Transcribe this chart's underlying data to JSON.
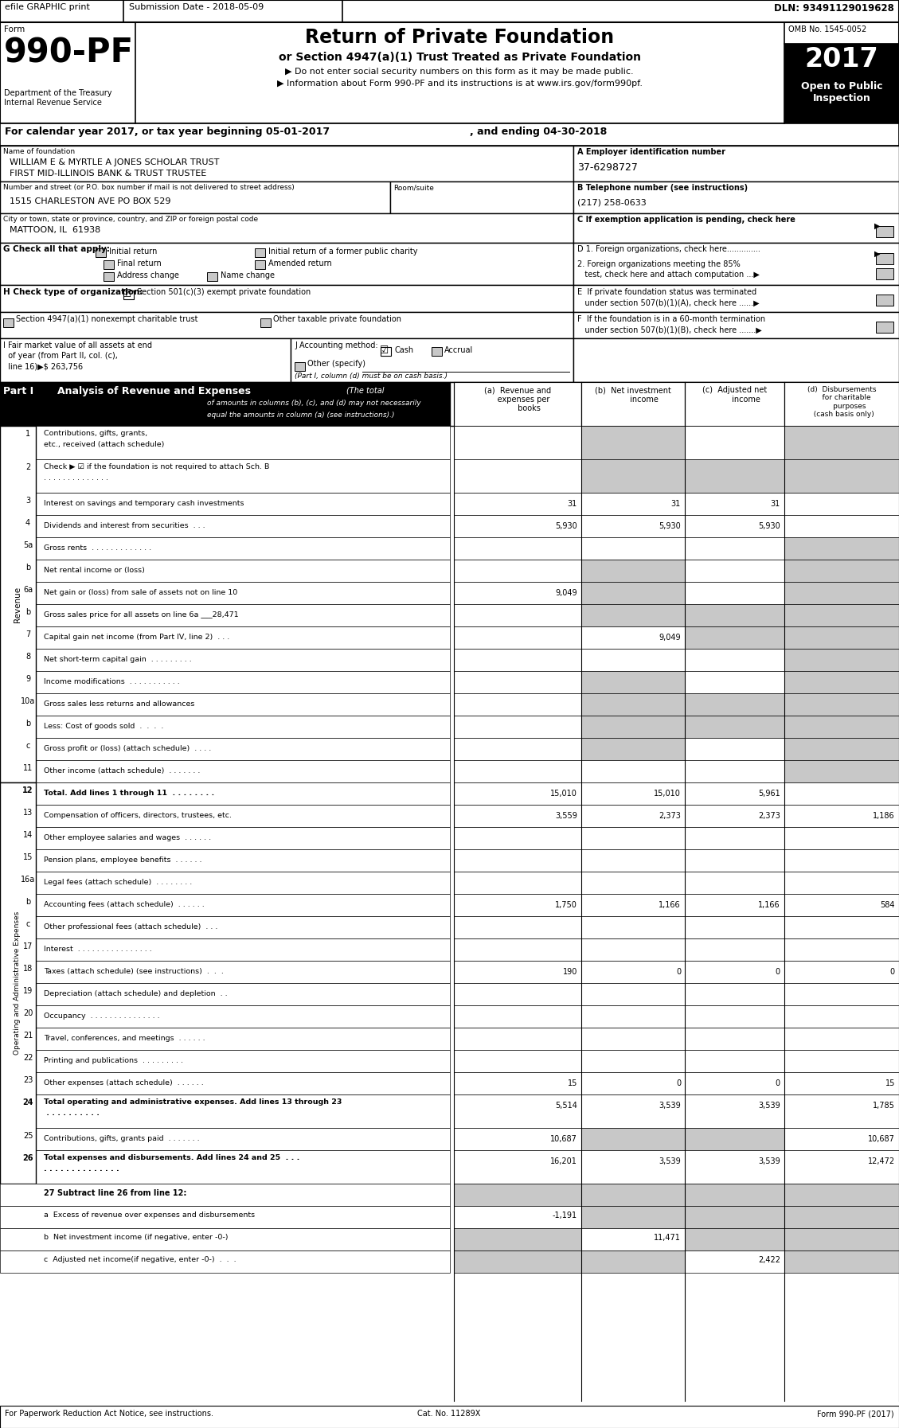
{
  "efile_text": "efile GRAPHIC print",
  "submission_date": "Submission Date - 2018-05-09",
  "dln": "DLN: 93491129019628",
  "title_main": "Return of Private Foundation",
  "title_sub1": "or Section 4947(a)(1) Trust Treated as Private Foundation",
  "title_sub2": "▶ Do not enter social security numbers on this form as it may be made public.",
  "title_sub3": "▶ Information about Form 990-PF and its instructions is at www.irs.gov/form990pf.",
  "dept_line1": "Department of the Treasury",
  "dept_line2": "Internal Revenue Service",
  "omb": "OMB No. 1545-0052",
  "year": "2017",
  "cal_year_line": "For calendar year 2017, or tax year beginning 05-01-2017",
  "cal_year_end": ", and ending 04-30-2018",
  "name_label": "Name of foundation",
  "foundation_name1": "WILLIAM E & MYRTLE A JONES SCHOLAR TRUST",
  "foundation_name2": "FIRST MID-ILLINOIS BANK & TRUST TRUSTEE",
  "ein_label": "A Employer identification number",
  "ein": "37-6298727",
  "address_label": "Number and street (or P.O. box number if mail is not delivered to street address)",
  "room_label": "Room/suite",
  "address": "1515 CHARLESTON AVE PO BOX 529",
  "phone_label": "B Telephone number (see instructions)",
  "phone": "(217) 258-0633",
  "city_label": "City or town, state or province, country, and ZIP or foreign postal code",
  "city": "MATTOON, IL  61938",
  "exempt_label": "C If exemption application is pending, check here",
  "G_label": "G Check all that apply:",
  "initial_return": "Initial return",
  "former_charity": "Initial return of a former public charity",
  "final_return": "Final return",
  "amended_return": "Amended return",
  "address_change": "Address change",
  "name_change": "Name change",
  "D1_label": "D 1. Foreign organizations, check here..............",
  "D2_line1": "2. Foreign organizations meeting the 85%",
  "D2_line2": "   test, check here and attach computation ...▶",
  "H_label": "H Check type of organization:",
  "H_501": "Section 501(c)(3) exempt private foundation",
  "H_4947": "Section 4947(a)(1) nonexempt charitable trust",
  "H_other": "Other taxable private foundation",
  "E_line1": "E  If private foundation status was terminated",
  "E_line2": "   under section 507(b)(1)(A), check here ......▶",
  "F_line1": "F  If the foundation is in a 60-month termination",
  "F_line2": "   under section 507(b)(1)(B), check here .......▶",
  "I_line1": "I Fair market value of all assets at end",
  "I_line2": "  of year (from Part II, col. (c),",
  "I_line3": "  line 16)▶$ 263,756",
  "J_label": "J Accounting method:",
  "J_cash": "Cash",
  "J_accrual": "Accrual",
  "J_other": "Other (specify)",
  "J_note": "(Part I, column (d) must be on cash basis.)",
  "rows": [
    {
      "num": "1",
      "label": "Contributions, gifts, grants, etc., received (attach schedule)",
      "multiline": true,
      "a": "",
      "b": "",
      "c": "",
      "d": "",
      "shade_b": true,
      "shade_c": false,
      "shade_d": true,
      "bold": false
    },
    {
      "num": "2",
      "label": "Check ▶ ☑ if the foundation is not required to attach Sch. B  . . . . . . . . . . . . . .",
      "multiline": true,
      "a": "",
      "b": "",
      "c": "",
      "d": "",
      "shade_b": true,
      "shade_c": true,
      "shade_d": true,
      "bold": false
    },
    {
      "num": "3",
      "label": "Interest on savings and temporary cash investments",
      "multiline": false,
      "a": "31",
      "b": "31",
      "c": "31",
      "d": "",
      "shade_b": false,
      "shade_c": false,
      "shade_d": false,
      "bold": false
    },
    {
      "num": "4",
      "label": "Dividends and interest from securities  . . .",
      "multiline": false,
      "a": "5,930",
      "b": "5,930",
      "c": "5,930",
      "d": "",
      "shade_b": false,
      "shade_c": false,
      "shade_d": false,
      "bold": false
    },
    {
      "num": "5a",
      "label": "Gross rents  . . . . . . . . . . . . .",
      "multiline": false,
      "a": "",
      "b": "",
      "c": "",
      "d": "",
      "shade_b": false,
      "shade_c": false,
      "shade_d": true,
      "bold": false
    },
    {
      "num": "b",
      "label": "Net rental income or (loss)",
      "multiline": false,
      "a": "",
      "b": "",
      "c": "",
      "d": "",
      "shade_b": true,
      "shade_c": false,
      "shade_d": true,
      "bold": false
    },
    {
      "num": "6a",
      "label": "Net gain or (loss) from sale of assets not on line 10",
      "multiline": false,
      "a": "9,049",
      "b": "",
      "c": "",
      "d": "",
      "shade_b": true,
      "shade_c": false,
      "shade_d": true,
      "bold": false
    },
    {
      "num": "b",
      "label": "Gross sales price for all assets on line 6a ___28,471",
      "multiline": false,
      "a": "",
      "b": "",
      "c": "",
      "d": "",
      "shade_b": true,
      "shade_c": true,
      "shade_d": true,
      "bold": false
    },
    {
      "num": "7",
      "label": "Capital gain net income (from Part IV, line 2)  . . .",
      "multiline": false,
      "a": "",
      "b": "9,049",
      "c": "",
      "d": "",
      "shade_b": false,
      "shade_c": true,
      "shade_d": true,
      "bold": false
    },
    {
      "num": "8",
      "label": "Net short-term capital gain  . . . . . . . . .",
      "multiline": false,
      "a": "",
      "b": "",
      "c": "",
      "d": "",
      "shade_b": false,
      "shade_c": false,
      "shade_d": true,
      "bold": false
    },
    {
      "num": "9",
      "label": "Income modifications  . . . . . . . . . . .",
      "multiline": false,
      "a": "",
      "b": "",
      "c": "",
      "d": "",
      "shade_b": true,
      "shade_c": false,
      "shade_d": true,
      "bold": false
    },
    {
      "num": "10a",
      "label": "Gross sales less returns and allowances",
      "multiline": false,
      "a": "",
      "b": "",
      "c": "",
      "d": "",
      "shade_b": true,
      "shade_c": true,
      "shade_d": true,
      "bold": false
    },
    {
      "num": "b",
      "label": "Less: Cost of goods sold  .  .  .  .",
      "multiline": false,
      "a": "",
      "b": "",
      "c": "",
      "d": "",
      "shade_b": true,
      "shade_c": true,
      "shade_d": true,
      "bold": false
    },
    {
      "num": "c",
      "label": "Gross profit or (loss) (attach schedule)  . . . .",
      "multiline": false,
      "a": "",
      "b": "",
      "c": "",
      "d": "",
      "shade_b": true,
      "shade_c": false,
      "shade_d": true,
      "bold": false
    },
    {
      "num": "11",
      "label": "Other income (attach schedule)  . . . . . . .",
      "multiline": false,
      "a": "",
      "b": "",
      "c": "",
      "d": "",
      "shade_b": false,
      "shade_c": false,
      "shade_d": true,
      "bold": false
    },
    {
      "num": "12",
      "label": "Total. Add lines 1 through 11  . . . . . . . .",
      "multiline": false,
      "a": "15,010",
      "b": "15,010",
      "c": "5,961",
      "d": "",
      "shade_b": false,
      "shade_c": false,
      "shade_d": false,
      "bold": true
    },
    {
      "num": "13",
      "label": "Compensation of officers, directors, trustees, etc.",
      "multiline": false,
      "a": "3,559",
      "b": "2,373",
      "c": "2,373",
      "d": "1,186",
      "shade_b": false,
      "shade_c": false,
      "shade_d": false,
      "bold": false
    },
    {
      "num": "14",
      "label": "Other employee salaries and wages  . . . . . .",
      "multiline": false,
      "a": "",
      "b": "",
      "c": "",
      "d": "",
      "shade_b": false,
      "shade_c": false,
      "shade_d": false,
      "bold": false
    },
    {
      "num": "15",
      "label": "Pension plans, employee benefits  . . . . . .",
      "multiline": false,
      "a": "",
      "b": "",
      "c": "",
      "d": "",
      "shade_b": false,
      "shade_c": false,
      "shade_d": false,
      "bold": false
    },
    {
      "num": "16a",
      "label": "Legal fees (attach schedule)  . . . . . . . .",
      "multiline": false,
      "a": "",
      "b": "",
      "c": "",
      "d": "",
      "shade_b": false,
      "shade_c": false,
      "shade_d": false,
      "bold": false
    },
    {
      "num": "b",
      "label": "Accounting fees (attach schedule)  . . . . . .",
      "multiline": false,
      "a": "1,750",
      "b": "1,166",
      "c": "1,166",
      "d": "584",
      "shade_b": false,
      "shade_c": false,
      "shade_d": false,
      "bold": false
    },
    {
      "num": "c",
      "label": "Other professional fees (attach schedule)  . . .",
      "multiline": false,
      "a": "",
      "b": "",
      "c": "",
      "d": "",
      "shade_b": false,
      "shade_c": false,
      "shade_d": false,
      "bold": false
    },
    {
      "num": "17",
      "label": "Interest  . . . . . . . . . . . . . . . .",
      "multiline": false,
      "a": "",
      "b": "",
      "c": "",
      "d": "",
      "shade_b": false,
      "shade_c": false,
      "shade_d": false,
      "bold": false
    },
    {
      "num": "18",
      "label": "Taxes (attach schedule) (see instructions)  .  .  .",
      "multiline": false,
      "a": "190",
      "b": "0",
      "c": "0",
      "d": "0",
      "shade_b": false,
      "shade_c": false,
      "shade_d": false,
      "bold": false
    },
    {
      "num": "19",
      "label": "Depreciation (attach schedule) and depletion  . .",
      "multiline": false,
      "a": "",
      "b": "",
      "c": "",
      "d": "",
      "shade_b": false,
      "shade_c": false,
      "shade_d": false,
      "bold": false
    },
    {
      "num": "20",
      "label": "Occupancy  . . . . . . . . . . . . . . .",
      "multiline": false,
      "a": "",
      "b": "",
      "c": "",
      "d": "",
      "shade_b": false,
      "shade_c": false,
      "shade_d": false,
      "bold": false
    },
    {
      "num": "21",
      "label": "Travel, conferences, and meetings  . . . . . .",
      "multiline": false,
      "a": "",
      "b": "",
      "c": "",
      "d": "",
      "shade_b": false,
      "shade_c": false,
      "shade_d": false,
      "bold": false
    },
    {
      "num": "22",
      "label": "Printing and publications  . . . . . . . . .",
      "multiline": false,
      "a": "",
      "b": "",
      "c": "",
      "d": "",
      "shade_b": false,
      "shade_c": false,
      "shade_d": false,
      "bold": false
    },
    {
      "num": "23",
      "label": "Other expenses (attach schedule)  . . . . . .",
      "multiline": false,
      "a": "15",
      "b": "0",
      "c": "0",
      "d": "15",
      "shade_b": false,
      "shade_c": false,
      "shade_d": false,
      "bold": false
    },
    {
      "num": "24",
      "label": "Total operating and administrative expenses. Add lines 13 through 23  . . . . . . . . . .",
      "multiline": true,
      "a": "5,514",
      "b": "3,539",
      "c": "3,539",
      "d": "1,785",
      "shade_b": false,
      "shade_c": false,
      "shade_d": false,
      "bold": true
    },
    {
      "num": "25",
      "label": "Contributions, gifts, grants paid  . . . . . . .",
      "multiline": false,
      "a": "10,687",
      "b": "",
      "c": "",
      "d": "10,687",
      "shade_b": true,
      "shade_c": true,
      "shade_d": false,
      "bold": false
    },
    {
      "num": "26",
      "label": "Total expenses and disbursements. Add lines 24 and 25  . . . . . . . . . . . . . . . . .",
      "multiline": true,
      "a": "16,201",
      "b": "3,539",
      "c": "3,539",
      "d": "12,472",
      "shade_b": false,
      "shade_c": false,
      "shade_d": false,
      "bold": true
    }
  ],
  "r27_label": "27 Subtract line 26 from line 12:",
  "r27a_label": "a  Excess of revenue over expenses and disbursements",
  "r27a_val": "-1,191",
  "r27b_label": "b  Net investment income (if negative, enter -0-)",
  "r27b_val": "11,471",
  "r27c_label": "c  Adjusted net income(if negative, enter -0-)  .  .  .",
  "r27c_val": "2,422",
  "footer_left": "For Paperwork Reduction Act Notice, see instructions.",
  "footer_cat": "Cat. No. 11289X",
  "footer_right": "Form 990-PF (2017)",
  "shaded": "#c8c8c8",
  "white": "#ffffff",
  "black": "#000000"
}
